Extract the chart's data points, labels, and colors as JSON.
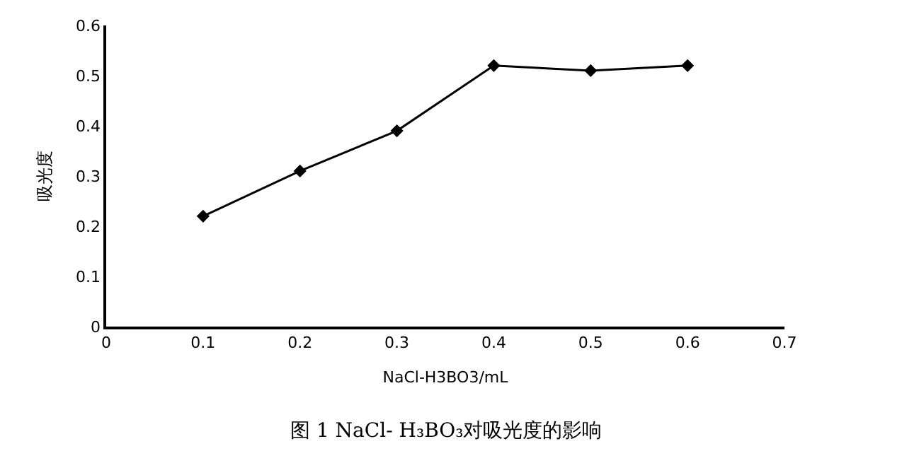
{
  "chart_data": {
    "type": "line",
    "title": "图 1 NaCl- H₃BO₃对吸光度的影响",
    "xlabel": "NaCl-H3BO3/mL",
    "ylabel": "吸光度",
    "x": [
      0.1,
      0.2,
      0.3,
      0.4,
      0.5,
      0.6
    ],
    "series": [
      {
        "color": "#000000",
        "values": [
          0.22,
          0.31,
          0.39,
          0.52,
          0.51,
          0.52
        ]
      }
    ],
    "xlim": [
      0,
      0.7
    ],
    "xticks": [
      0,
      0.1,
      0.2,
      0.3,
      0.4,
      0.5,
      0.6,
      0.7
    ],
    "ylim": [
      0,
      0.6
    ],
    "yticks": [
      0,
      0.1,
      0.2,
      0.3,
      0.4,
      0.5,
      0.6
    ],
    "legend": false,
    "marker": "diamond",
    "line_style": "solid"
  }
}
